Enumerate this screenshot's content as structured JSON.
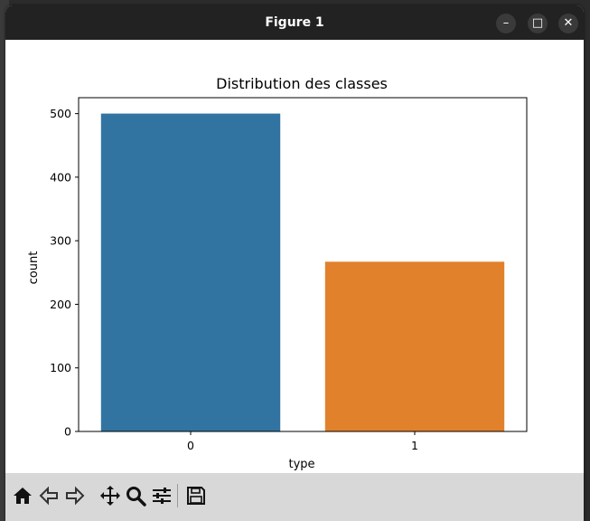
{
  "window": {
    "title": "Figure 1",
    "buttons": {
      "minimize": "–",
      "maximize": "□",
      "close": "✕"
    }
  },
  "toolbar": {
    "icons": [
      "home-icon",
      "back-arrow-icon",
      "forward-arrow-icon",
      "pan-move-icon",
      "zoom-magnifier-icon",
      "configure-subplots-icon",
      "save-floppy-icon"
    ]
  },
  "chart_data": {
    "type": "bar",
    "title": "Distribution des classes",
    "xlabel": "type",
    "ylabel": "count",
    "categories": [
      "0",
      "1"
    ],
    "values": [
      500,
      267
    ],
    "colors": [
      "#3274a1",
      "#e1812c"
    ],
    "yticks": [
      0,
      100,
      200,
      300,
      400,
      500
    ],
    "ylim": [
      0,
      525
    ],
    "grid": false
  }
}
